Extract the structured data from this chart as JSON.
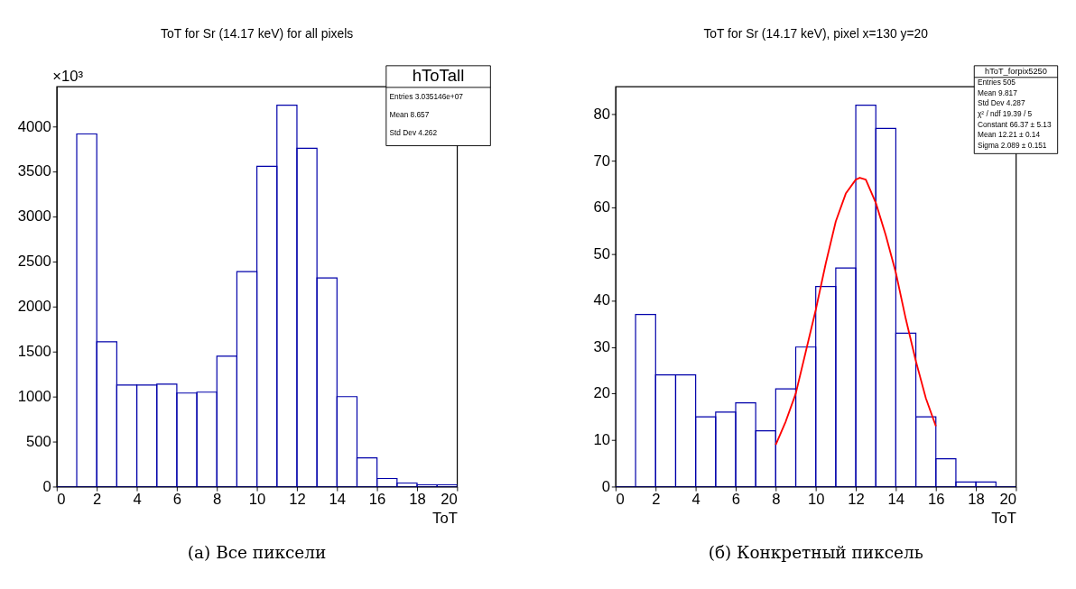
{
  "chart_data": [
    {
      "type": "histogram",
      "title": "ToT for Sr (14.17 keV) for all pixels",
      "xlabel": "ToT",
      "ylabel": "×10³",
      "bins": [
        0,
        1,
        2,
        3,
        4,
        5,
        6,
        7,
        8,
        9,
        10,
        11,
        12,
        13,
        14,
        15,
        16,
        17,
        18,
        19,
        20
      ],
      "series": [
        {
          "color": "#0000aa",
          "values": [
            0,
            3920,
            1610,
            1130,
            1130,
            1140,
            1040,
            1050,
            1450,
            2390,
            3560,
            4240,
            3760,
            2320,
            1000,
            320,
            90,
            40,
            20,
            20
          ]
        }
      ],
      "xlim": [
        0,
        20
      ],
      "xticks": [
        0,
        2,
        4,
        6,
        8,
        10,
        12,
        14,
        16,
        18,
        20
      ],
      "ylim": [
        0,
        4447
      ],
      "yticks": [
        0,
        500,
        1000,
        1500,
        2000,
        2500,
        3000,
        3500,
        4000
      ],
      "grid": false,
      "annotations": [
        "hToTall",
        "Entries 3.035146e+07",
        "Mean 8.657",
        "Std Dev 4.262",
        "(а) Все пиксели"
      ]
    },
    {
      "type": "histogram",
      "title": "ToT for Sr (14.17 keV), pixel x=130 y=20",
      "xlabel": "ToT",
      "bins": [
        0,
        1,
        2,
        3,
        4,
        5,
        6,
        7,
        8,
        9,
        10,
        11,
        12,
        13,
        14,
        15,
        16,
        17,
        18,
        19,
        20
      ],
      "series": [
        {
          "color": "#0000aa",
          "values": [
            0,
            37,
            24,
            24,
            15,
            16,
            18,
            12,
            21,
            30,
            43,
            47,
            82,
            77,
            33,
            15,
            6,
            1,
            1,
            0
          ]
        },
        {
          "type": "line",
          "color": "#ff0000",
          "x": [
            8,
            8.5,
            9,
            9.5,
            10,
            10.5,
            11,
            11.5,
            12,
            12.2,
            12.5,
            13,
            13.5,
            14,
            14.5,
            15,
            15.5,
            16
          ],
          "values": [
            9,
            14,
            20,
            29,
            38,
            48,
            57,
            63,
            66,
            66.4,
            66,
            61,
            54,
            46,
            36,
            27,
            19,
            13
          ]
        }
      ],
      "xlim": [
        0,
        20
      ],
      "xticks": [
        0,
        2,
        4,
        6,
        8,
        10,
        12,
        14,
        16,
        18,
        20
      ],
      "ylim": [
        0,
        86
      ],
      "yticks": [
        0,
        10,
        20,
        30,
        40,
        50,
        60,
        70,
        80
      ],
      "grid": false,
      "annotations": [
        "hToT_forpix5250",
        "Entries 505",
        "Mean 9.817",
        "Std Dev 4.287",
        "χ² / ndf 19.39 / 5",
        "Constant 66.37 ± 5.13",
        "Mean 12.21 ± 0.14",
        "Sigma 2.089 ± 0.151",
        "(б) Конкретный пиксель"
      ]
    }
  ]
}
